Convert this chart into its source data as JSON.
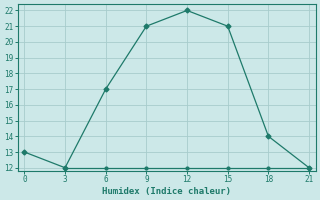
{
  "xlabel": "Humidex (Indice chaleur)",
  "x_main": [
    0,
    3,
    6,
    9,
    12,
    15,
    18,
    21
  ],
  "y_main": [
    13,
    12,
    17,
    21,
    22,
    21,
    14,
    12
  ],
  "x_flat": [
    3,
    6,
    9,
    12,
    15,
    18,
    21
  ],
  "y_flat": [
    12,
    12,
    12,
    12,
    12,
    12,
    12
  ],
  "line_color": "#1e7a6a",
  "bg_color": "#cce8e8",
  "grid_color": "#a8cccc",
  "xlim": [
    -0.5,
    21.5
  ],
  "ylim": [
    11.8,
    22.4
  ],
  "xticks": [
    0,
    3,
    6,
    9,
    12,
    15,
    18,
    21
  ],
  "yticks": [
    12,
    13,
    14,
    15,
    16,
    17,
    18,
    19,
    20,
    21,
    22
  ]
}
